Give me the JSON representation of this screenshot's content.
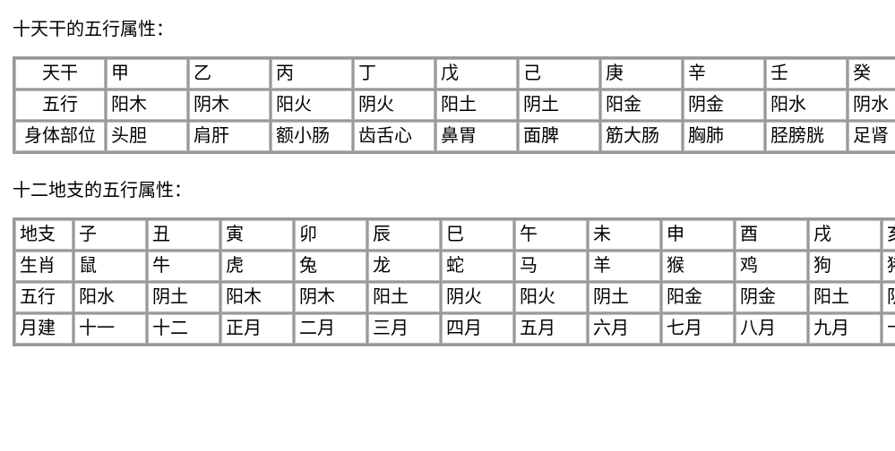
{
  "section1": {
    "title": "十天干的五行属性：",
    "rows": [
      {
        "label": "天干",
        "cells": [
          "甲",
          "乙",
          "丙",
          "丁",
          "戊",
          "己",
          "庚",
          "辛",
          "壬",
          "癸"
        ]
      },
      {
        "label": "五行",
        "cells": [
          "阳木",
          "阴木",
          "阳火",
          "阴火",
          "阳土",
          "阴土",
          "阳金",
          "阴金",
          "阳水",
          "阴水"
        ]
      },
      {
        "label": "身体部位",
        "cells": [
          "头胆",
          "肩肝",
          "额小肠",
          "齿舌心",
          "鼻胃",
          "面脾",
          "筋大肠",
          "胸肺",
          "胫膀胱",
          "足肾"
        ]
      }
    ]
  },
  "section2": {
    "title": "十二地支的五行属性：",
    "rows": [
      {
        "label": "地支",
        "cells": [
          "子",
          "丑",
          "寅",
          "卯",
          "辰",
          "巳",
          "午",
          "未",
          "申",
          "酉",
          "戌",
          "亥"
        ]
      },
      {
        "label": "生肖",
        "cells": [
          "鼠",
          "牛",
          "虎",
          "兔",
          "龙",
          "蛇",
          "马",
          "羊",
          "猴",
          "鸡",
          "狗",
          "猪"
        ]
      },
      {
        "label": "五行",
        "cells": [
          "阳水",
          "阴土",
          "阳木",
          "阴木",
          "阳土",
          "阴火",
          "阳火",
          "阴土",
          "阳金",
          "阴金",
          "阳土",
          "阴水"
        ]
      },
      {
        "label": "月建",
        "cells": [
          "十一",
          "十二",
          "正月",
          "二月",
          "三月",
          "四月",
          "五月",
          "六月",
          "七月",
          "八月",
          "九月",
          "十月"
        ]
      }
    ]
  }
}
